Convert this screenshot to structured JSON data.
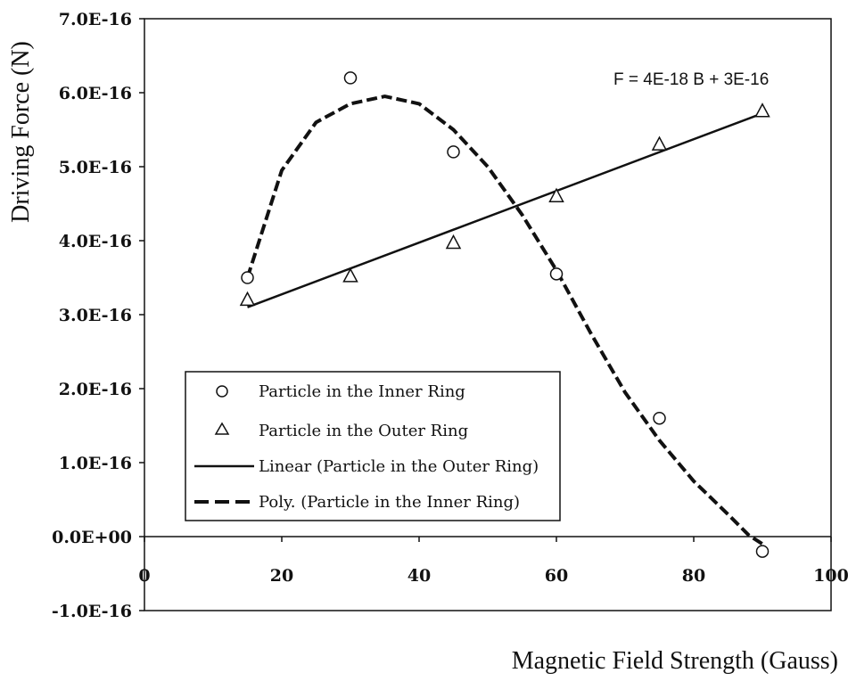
{
  "chart_data": {
    "type": "scatter",
    "xlabel": "Magnetic Field Strength (Gauss)",
    "ylabel": "Driving Force (N)",
    "xlim": [
      0,
      100
    ],
    "ylim": [
      -1e-16,
      7e-16
    ],
    "x_ticks": [
      {
        "value": 0,
        "label": "0"
      },
      {
        "value": 20,
        "label": "20"
      },
      {
        "value": 40,
        "label": "40"
      },
      {
        "value": 60,
        "label": "60"
      },
      {
        "value": 80,
        "label": "80"
      },
      {
        "value": 100,
        "label": "100"
      }
    ],
    "y_ticks": [
      {
        "value": 7e-16,
        "label": "7.0E-16"
      },
      {
        "value": 6e-16,
        "label": "6.0E-16"
      },
      {
        "value": 5e-16,
        "label": "5.0E-16"
      },
      {
        "value": 4e-16,
        "label": "4.0E-16"
      },
      {
        "value": 3e-16,
        "label": "3.0E-16"
      },
      {
        "value": 2e-16,
        "label": "2.0E-16"
      },
      {
        "value": 1e-16,
        "label": "1.0E-16"
      },
      {
        "value": 0,
        "label": "0.0E+00"
      },
      {
        "value": -1e-16,
        "label": "-1.0E-16"
      }
    ],
    "grid": false,
    "legend_position": "left",
    "series": [
      {
        "name": "Particle in the Inner Ring",
        "kind": "scatter",
        "marker": "circle",
        "points": [
          [
            15,
            3.5e-16
          ],
          [
            30,
            6.2e-16
          ],
          [
            45,
            5.2e-16
          ],
          [
            60,
            3.55e-16
          ],
          [
            75,
            1.6e-16
          ],
          [
            90,
            -2e-17
          ]
        ]
      },
      {
        "name": "Particle in the Outer Ring",
        "kind": "scatter",
        "marker": "triangle",
        "points": [
          [
            15,
            3.2e-16
          ],
          [
            30,
            3.52e-16
          ],
          [
            45,
            3.97e-16
          ],
          [
            60,
            4.6e-16
          ],
          [
            75,
            5.3e-16
          ],
          [
            90,
            5.75e-16
          ]
        ]
      },
      {
        "name": "Linear (Particle in the Outer Ring)",
        "kind": "line",
        "style": "solid",
        "points": [
          [
            15,
            3.1e-16
          ],
          [
            90,
            5.72e-16
          ]
        ]
      },
      {
        "name": "Poly. (Particle in the Inner Ring)",
        "kind": "line",
        "style": "dashed",
        "points": [
          [
            15,
            3.5e-16
          ],
          [
            20,
            4.95e-16
          ],
          [
            25,
            5.6e-16
          ],
          [
            30,
            5.85e-16
          ],
          [
            35,
            5.95e-16
          ],
          [
            40,
            5.85e-16
          ],
          [
            45,
            5.5e-16
          ],
          [
            50,
            5e-16
          ],
          [
            55,
            4.35e-16
          ],
          [
            60,
            3.6e-16
          ],
          [
            65,
            2.75e-16
          ],
          [
            70,
            1.95e-16
          ],
          [
            75,
            1.3e-16
          ],
          [
            80,
            7.5e-17
          ],
          [
            85,
            3e-17
          ],
          [
            88,
            2e-18
          ],
          [
            90,
            -1e-17
          ]
        ]
      }
    ],
    "annotations": [
      {
        "text": "F = 4E-18 B + 3E-16",
        "x": 90,
        "y": 6.2e-16
      }
    ]
  }
}
